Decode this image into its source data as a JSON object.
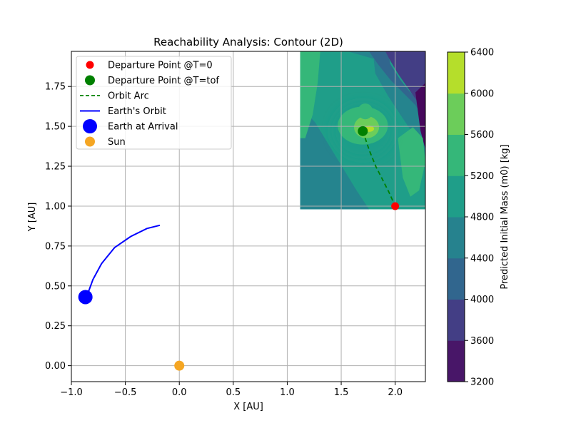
{
  "chart_data": {
    "type": "scatter",
    "title": "Reachability Analysis: Contour (2D)",
    "xlabel": "X [AU]",
    "ylabel": "Y [AU]",
    "xlim": [
      -1.0,
      2.28
    ],
    "ylim": [
      -0.1,
      1.97
    ],
    "xticks": [
      -1.0,
      -0.5,
      0.0,
      0.5,
      1.0,
      1.5,
      2.0
    ],
    "xtick_labels": [
      "−1.0",
      "−0.5",
      "0.0",
      "0.5",
      "1.0",
      "1.5",
      "2.0"
    ],
    "yticks": [
      0.0,
      0.25,
      0.5,
      0.75,
      1.0,
      1.25,
      1.5,
      1.75
    ],
    "ytick_labels": [
      "0.00",
      "0.25",
      "0.50",
      "0.75",
      "1.00",
      "1.25",
      "1.50",
      "1.75"
    ],
    "grid": true,
    "legend_position": "upper-left",
    "contour": {
      "x_range": [
        1.12,
        2.28
      ],
      "y_range": [
        0.98,
        1.97
      ],
      "levels": [
        3200,
        3600,
        4000,
        4400,
        4800,
        5200,
        5600,
        6000,
        6400
      ],
      "colors": [
        "#46085c",
        "#433e85",
        "#31668e",
        "#25848e",
        "#1f9e89",
        "#35b779",
        "#6ccd5a",
        "#b5de2b",
        "#fde725"
      ]
    },
    "colorbar": {
      "label": "Predicted Initial Mass (m0) [kg]",
      "range": [
        3200,
        6400
      ],
      "ticks": [
        3200,
        3600,
        4000,
        4400,
        4800,
        5200,
        5600,
        6000,
        6400
      ],
      "tick_labels": [
        "3200",
        "3600",
        "4000",
        "4400",
        "4800",
        "5200",
        "5600",
        "6000",
        "6400"
      ],
      "colors": [
        "#481668",
        "#433e85",
        "#31668e",
        "#26828e",
        "#1f9e89",
        "#35b779",
        "#6ccd5a",
        "#b5de2b"
      ]
    },
    "series": [
      {
        "name": "Departure Point @T=0",
        "kind": "point",
        "x": 2.0,
        "y": 1.0,
        "color": "#ff0000"
      },
      {
        "name": "Departure Point @T=tof",
        "kind": "point",
        "x": 1.7,
        "y": 1.47,
        "color": "#008000"
      },
      {
        "name": "Orbit Arc",
        "kind": "dashed-line",
        "color": "#008000",
        "points": [
          [
            1.7,
            1.47
          ],
          [
            1.76,
            1.35
          ],
          [
            1.82,
            1.25
          ],
          [
            1.88,
            1.17
          ],
          [
            1.94,
            1.09
          ],
          [
            2.0,
            1.0
          ]
        ]
      },
      {
        "name": "Earth's Orbit",
        "kind": "line",
        "color": "#0000ff",
        "points": [
          [
            -0.86,
            0.43
          ],
          [
            -0.8,
            0.54
          ],
          [
            -0.72,
            0.64
          ],
          [
            -0.6,
            0.74
          ],
          [
            -0.45,
            0.81
          ],
          [
            -0.3,
            0.86
          ],
          [
            -0.18,
            0.88
          ]
        ]
      },
      {
        "name": "Earth at Arrival",
        "kind": "point-large",
        "x": -0.87,
        "y": 0.43,
        "color": "#0000ff"
      },
      {
        "name": "Sun",
        "kind": "point",
        "x": 0.0,
        "y": 0.0,
        "color": "#f5a623"
      }
    ]
  }
}
